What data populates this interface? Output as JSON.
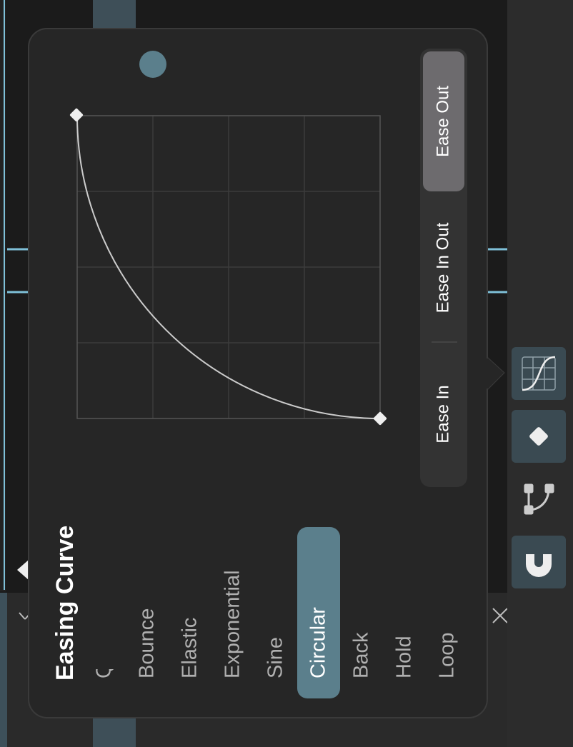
{
  "panel": {
    "title": "Easing Curve",
    "curve_types": [
      {
        "label": "Quintic",
        "selected": false
      },
      {
        "label": "Bounce",
        "selected": false
      },
      {
        "label": "Elastic",
        "selected": false
      },
      {
        "label": "Exponential",
        "selected": false
      },
      {
        "label": "Sine",
        "selected": false
      },
      {
        "label": "Circular",
        "selected": true
      },
      {
        "label": "Back",
        "selected": false
      },
      {
        "label": "Hold",
        "selected": false
      },
      {
        "label": "Loop",
        "selected": false
      }
    ],
    "modes": [
      {
        "label": "Ease In",
        "selected": false
      },
      {
        "label": "Ease In Out",
        "selected": false
      },
      {
        "label": "Ease Out",
        "selected": true
      }
    ]
  }
}
